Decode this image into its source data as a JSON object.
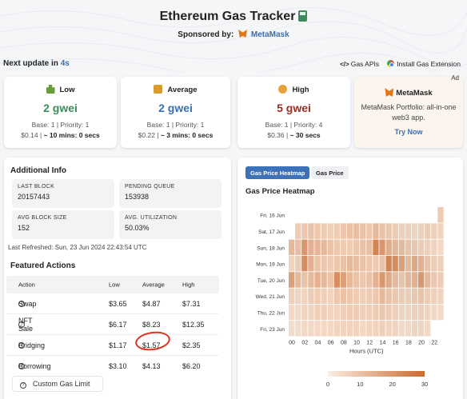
{
  "header": {
    "title": "Ethereum Gas Tracker",
    "sponsor_label": "Sponsored by:",
    "sponsor_name": "MetaMask"
  },
  "update": {
    "label": "Next update in",
    "seconds": "4s"
  },
  "links": {
    "gas_apis": "Gas APIs",
    "extension": "Install Gas Extension"
  },
  "cards": {
    "low": {
      "title": "Low",
      "gwei": "2 gwei",
      "base_priority": "Base: 1 | Priority: 1",
      "cost": "$0.14",
      "time": "~ 10 mins: 0 secs",
      "color": "#3d8b5a"
    },
    "average": {
      "title": "Average",
      "gwei": "2 gwei",
      "base_priority": "Base: 1 | Priority: 1",
      "cost": "$0.22",
      "time": "~ 3 mins: 0 secs",
      "color": "#3a6fb0"
    },
    "high": {
      "title": "High",
      "gwei": "5 gwei",
      "base_priority": "Base: 1 | Priority: 4",
      "cost": "$0.36",
      "time": "~ 30 secs",
      "color": "#9b2d24"
    }
  },
  "ad": {
    "tag": "Ad",
    "brand": "MetaMask",
    "body_line1": "MetaMask Portfolio: all-in-one",
    "body_line2": "web3 app.",
    "cta": "Try Now"
  },
  "additional_info": {
    "title": "Additional Info",
    "last_block_label": "LAST BLOCK",
    "last_block": "20157443",
    "pending_label": "PENDING QUEUE",
    "pending": "153938",
    "avg_block_label": "AVG BLOCK SIZE",
    "avg_block": "152",
    "util_label": "AVG. UTILIZATION",
    "util": "50.03%",
    "last_refreshed": "Last Refreshed: Sun, 23 Jun 2024 22:43:54 UTC"
  },
  "featured": {
    "title": "Featured Actions",
    "columns": [
      "Action",
      "Low",
      "Average",
      "High"
    ],
    "rows": [
      {
        "action": "Swap",
        "low": "$3.65",
        "average": "$4.87",
        "high": "$7.31"
      },
      {
        "action": "NFT Sale",
        "low": "$6.17",
        "average": "$8.23",
        "high": "$12.35"
      },
      {
        "action": "Bridging",
        "low": "$1.17",
        "average": "$1.57",
        "high": "$2.35"
      },
      {
        "action": "Borrowing",
        "low": "$3.10",
        "average": "$4.13",
        "high": "$6.20"
      }
    ],
    "custom_button": "Custom Gas Limit"
  },
  "tabs": {
    "heatmap": "Gas Price Heatmap",
    "price": "Gas Price"
  },
  "chart_data": {
    "type": "heatmap",
    "title": "Gas Price Heatmap",
    "xlabel": "Hours (UTC)",
    "x_ticks": [
      "00",
      "02",
      "04",
      "06",
      "08",
      "10",
      "12",
      "14",
      "16",
      "18",
      "20",
      "22"
    ],
    "rows": [
      "Fri, 16 Jun",
      "Sat, 17 Jun",
      "Sun, 18 Jun",
      "Mon, 19 Jun",
      "Tue, 20 Jun",
      "Wed, 21 Jun",
      "Thu, 22 Jun",
      "Fri, 23 Jun"
    ],
    "colorbar_ticks": [
      0,
      10,
      20,
      30
    ],
    "colorbar_range": [
      0,
      30
    ],
    "color_low": "#fbeee3",
    "color_high": "#c96a30",
    "values": [
      [
        null,
        null,
        null,
        null,
        null,
        null,
        null,
        null,
        null,
        null,
        null,
        null,
        null,
        null,
        null,
        null,
        null,
        null,
        null,
        null,
        null,
        null,
        null,
        8
      ],
      [
        null,
        8,
        9,
        10,
        9,
        8,
        7,
        8,
        9,
        10,
        11,
        10,
        9,
        12,
        10,
        9,
        8,
        7,
        7,
        6,
        7,
        8,
        7,
        6
      ],
      [
        12,
        11,
        20,
        14,
        13,
        12,
        10,
        9,
        8,
        8,
        9,
        10,
        11,
        24,
        20,
        15,
        13,
        12,
        10,
        9,
        8,
        7,
        6,
        5
      ],
      [
        6,
        8,
        22,
        14,
        10,
        9,
        8,
        9,
        10,
        12,
        11,
        10,
        9,
        8,
        10,
        24,
        22,
        18,
        12,
        16,
        14,
        10,
        8,
        7
      ],
      [
        18,
        12,
        10,
        12,
        14,
        12,
        10,
        22,
        18,
        12,
        10,
        9,
        10,
        14,
        20,
        16,
        12,
        10,
        13,
        14,
        20,
        12,
        9,
        8
      ],
      [
        7,
        6,
        6,
        8,
        8,
        7,
        6,
        9,
        10,
        9,
        8,
        7,
        8,
        9,
        12,
        10,
        9,
        8,
        8,
        9,
        10,
        8,
        7,
        6
      ],
      [
        5,
        5,
        6,
        6,
        7,
        7,
        6,
        6,
        7,
        8,
        8,
        7,
        7,
        8,
        9,
        8,
        7,
        6,
        6,
        7,
        7,
        6,
        5,
        5
      ],
      [
        4,
        4,
        5,
        5,
        5,
        5,
        5,
        6,
        6,
        6,
        6,
        5,
        6,
        6,
        7,
        6,
        6,
        5,
        5,
        6,
        6,
        5,
        null,
        null
      ]
    ]
  }
}
